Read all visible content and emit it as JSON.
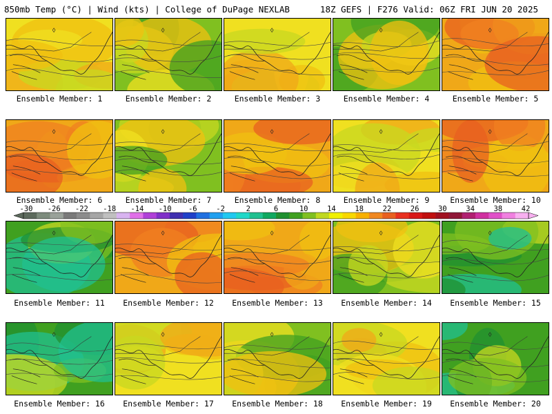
{
  "header": {
    "left": "850mb Temp (°C) | Wind (kts) | College of DuPage NEXLAB",
    "right": "18Z GEFS | F276 Valid: 06Z FRI JUN 20 2025"
  },
  "members": [
    {
      "label": "Ensemble Member: 1",
      "tone": "warm"
    },
    {
      "label": "Ensemble Member: 2",
      "tone": "mixed"
    },
    {
      "label": "Ensemble Member: 3",
      "tone": "warm"
    },
    {
      "label": "Ensemble Member: 4",
      "tone": "mixed"
    },
    {
      "label": "Ensemble Member: 5",
      "tone": "hot"
    },
    {
      "label": "Ensemble Member: 6",
      "tone": "hot"
    },
    {
      "label": "Ensemble Member: 7",
      "tone": "mixed"
    },
    {
      "label": "Ensemble Member: 8",
      "tone": "hot"
    },
    {
      "label": "Ensemble Member: 9",
      "tone": "warm"
    },
    {
      "label": "Ensemble Member: 10",
      "tone": "hot"
    },
    {
      "label": "Ensemble Member: 11",
      "tone": "cool"
    },
    {
      "label": "Ensemble Member: 12",
      "tone": "hot"
    },
    {
      "label": "Ensemble Member: 13",
      "tone": "hot"
    },
    {
      "label": "Ensemble Member: 14",
      "tone": "mixed"
    },
    {
      "label": "Ensemble Member: 15",
      "tone": "cool"
    },
    {
      "label": "Ensemble Member: 16",
      "tone": "cool"
    },
    {
      "label": "Ensemble Member: 17",
      "tone": "warm"
    },
    {
      "label": "Ensemble Member: 18",
      "tone": "mixed"
    },
    {
      "label": "Ensemble Member: 19",
      "tone": "warm"
    },
    {
      "label": "Ensemble Member: 20",
      "tone": "cool"
    }
  ],
  "colorbar": {
    "labels": [
      "-30",
      "-26",
      "-22",
      "-18",
      "-14",
      "-10",
      "-6",
      "-2",
      "2",
      "6",
      "10",
      "14",
      "18",
      "22",
      "26",
      "30",
      "34",
      "38",
      "42"
    ],
    "colors": [
      "#5c6a5c",
      "#7d8c7d",
      "#9aa29a",
      "#7a7a7a",
      "#8c8c8c",
      "#a6a6a6",
      "#c0c0c0",
      "#d8b4f0",
      "#e070e8",
      "#b040d8",
      "#8030c8",
      "#4030b0",
      "#2040c8",
      "#2070e0",
      "#20a0f0",
      "#20c8f0",
      "#20d8c8",
      "#20c090",
      "#10a860",
      "#209030",
      "#40a020",
      "#80c020",
      "#c0d820",
      "#f0f000",
      "#f8d800",
      "#f8b000",
      "#f08820",
      "#e86020",
      "#e83020",
      "#d81818",
      "#c01010",
      "#a01020",
      "#901838",
      "#b02070",
      "#d030a0",
      "#e050c8",
      "#f080e0",
      "#f8b0f0"
    ]
  }
}
